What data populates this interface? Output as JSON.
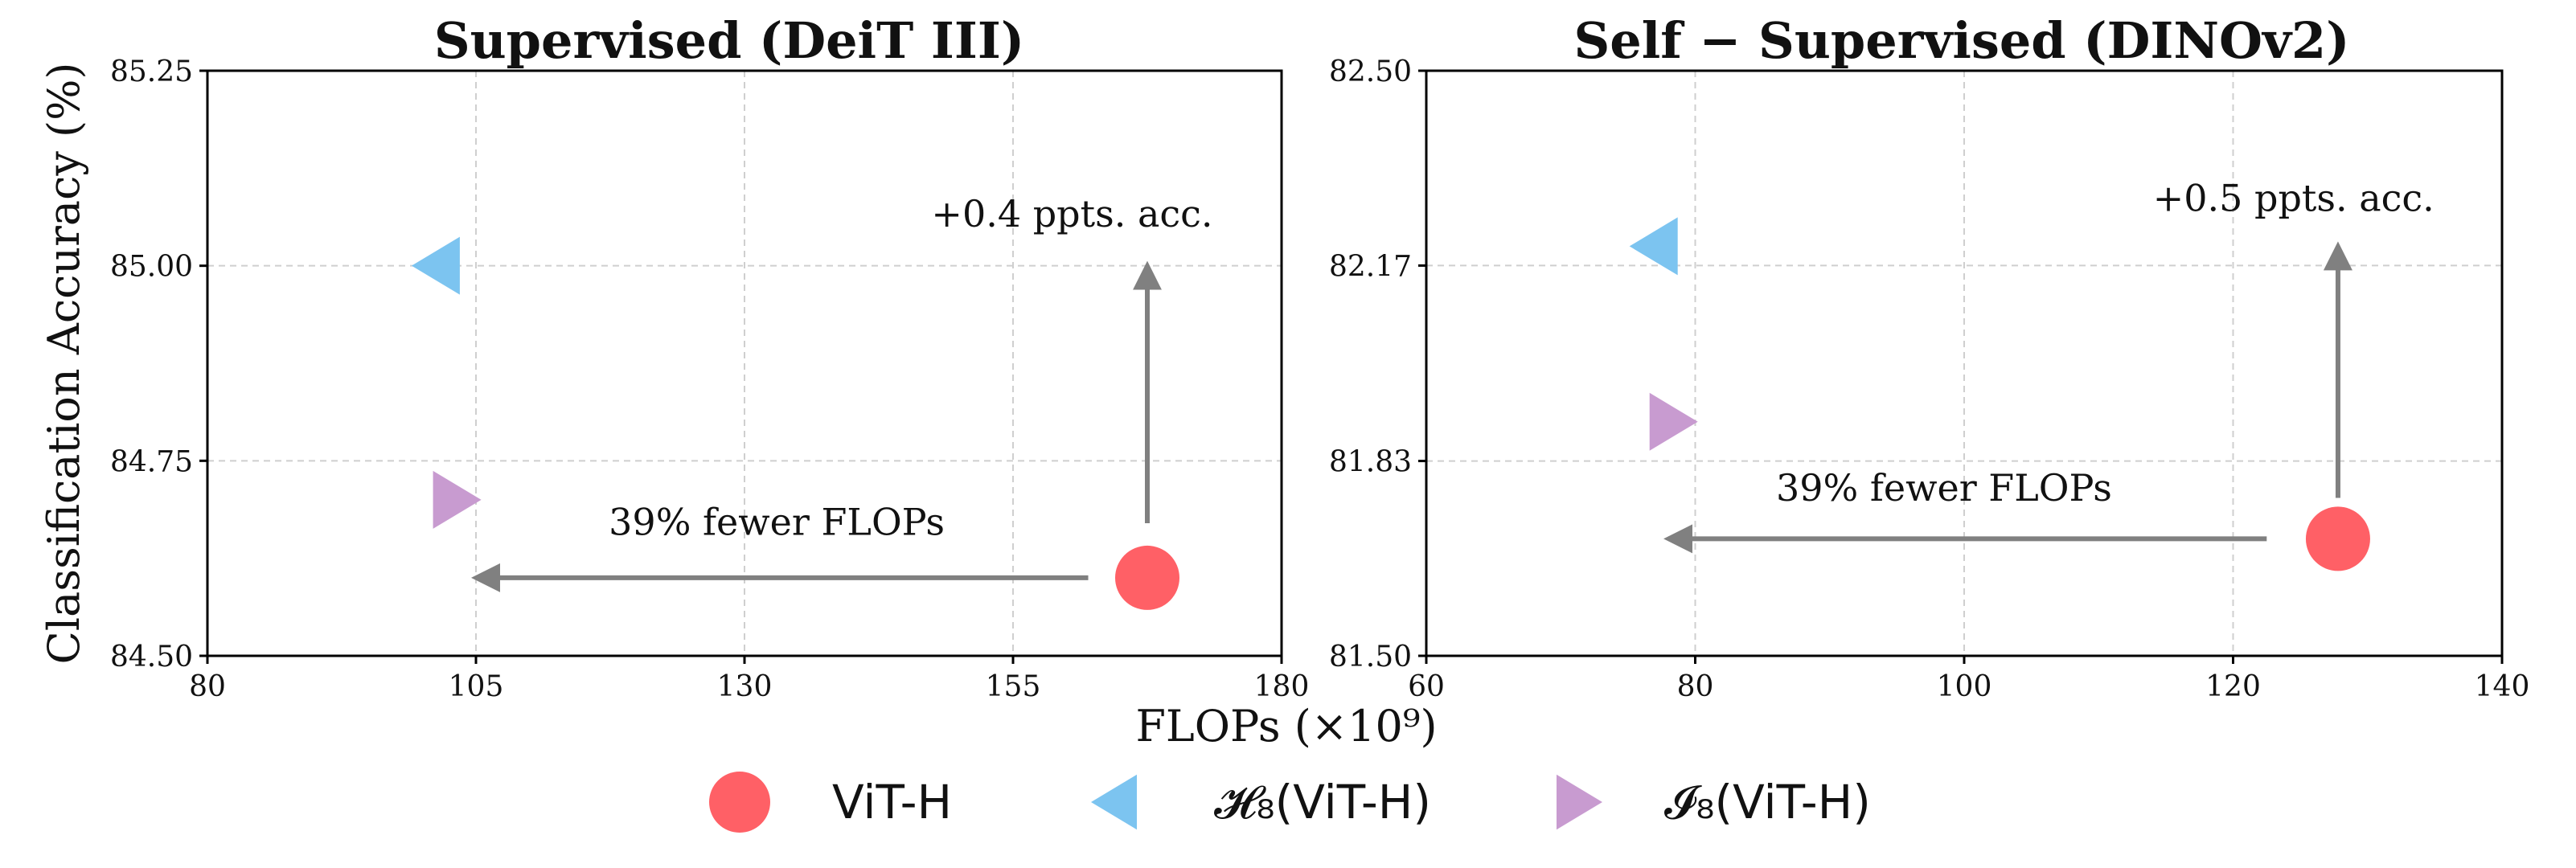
{
  "xlabel": "FLOPs (×10⁹)",
  "ylabel": "Classification Accuracy (%)",
  "legend": [
    {
      "label": "ViT-H",
      "marker": "circle",
      "color": "#ff6066"
    },
    {
      "label": "𝓗₈(ViT-H)",
      "marker": "triangle-left",
      "color": "#7cc4f0"
    },
    {
      "label": "𝓘₈(ViT-H)",
      "marker": "triangle-right",
      "color": "#c89bd0"
    }
  ],
  "chart_data": [
    {
      "type": "scatter",
      "title": "Supervised (DeiT III)",
      "xlim": [
        80,
        180
      ],
      "ylim": [
        84.5,
        85.25
      ],
      "xticks": [
        "80",
        "105",
        "130",
        "155",
        "180"
      ],
      "xtick_values": [
        80,
        105,
        130,
        155,
        180
      ],
      "yticks": [
        "84.50",
        "84.75",
        "85.00",
        "85.25"
      ],
      "ytick_values": [
        84.5,
        84.75,
        85.0,
        85.25
      ],
      "grid": true,
      "series": [
        {
          "name": "ViT-H",
          "marker": "circle",
          "color": "#ff6066",
          "x": [
            167.5
          ],
          "y": [
            84.6
          ]
        },
        {
          "name": "𝓗₈(ViT-H)",
          "marker": "triangle-left",
          "color": "#7cc4f0",
          "x": [
            102
          ],
          "y": [
            85.0
          ]
        },
        {
          "name": "𝓘₈(ViT-H)",
          "marker": "triangle-right",
          "color": "#c89bd0",
          "x": [
            102.5
          ],
          "y": [
            84.7
          ]
        }
      ],
      "annotations": [
        {
          "text": "+0.4 ppts. acc.",
          "x": 160.5,
          "y": 85.05,
          "anchor": "middle"
        },
        {
          "text": "39% fewer FLOPs",
          "x": 133,
          "y": 84.655,
          "anchor": "middle"
        }
      ],
      "arrows": [
        {
          "from": [
            167.5,
            84.67
          ],
          "to": [
            167.5,
            85.0
          ],
          "color": "#808080"
        },
        {
          "from": [
            162,
            84.6
          ],
          "to": [
            105,
            84.6
          ],
          "color": "#808080"
        }
      ]
    },
    {
      "type": "scatter",
      "title": "Self − Supervised (DINOv2)",
      "xlim": [
        60,
        140
      ],
      "ylim": [
        81.5,
        82.5
      ],
      "xticks": [
        "60",
        "80",
        "100",
        "120",
        "140"
      ],
      "xtick_values": [
        60,
        80,
        100,
        120,
        140
      ],
      "yticks": [
        "81.50",
        "81.83",
        "82.17",
        "82.50"
      ],
      "ytick_values": [
        81.5,
        81.833,
        82.167,
        82.5
      ],
      "grid": true,
      "series": [
        {
          "name": "ViT-H",
          "marker": "circle",
          "color": "#ff6066",
          "x": [
            127.8
          ],
          "y": [
            81.7
          ]
        },
        {
          "name": "𝓗₈(ViT-H)",
          "marker": "triangle-left",
          "color": "#7cc4f0",
          "x": [
            77.5
          ],
          "y": [
            82.2
          ]
        },
        {
          "name": "𝓘₈(ViT-H)",
          "marker": "triangle-right",
          "color": "#c89bd0",
          "x": [
            77.8
          ],
          "y": [
            81.9
          ]
        }
      ],
      "annotations": [
        {
          "text": "+0.5 ppts. acc.",
          "x": 124.5,
          "y": 82.26,
          "anchor": "middle"
        },
        {
          "text": "39% fewer FLOPs",
          "x": 98.5,
          "y": 81.765,
          "anchor": "middle"
        }
      ],
      "arrows": [
        {
          "from": [
            127.8,
            81.77
          ],
          "to": [
            127.8,
            82.2
          ],
          "color": "#808080"
        },
        {
          "from": [
            122.5,
            81.7
          ],
          "to": [
            78,
            81.7
          ],
          "color": "#808080"
        }
      ]
    }
  ]
}
